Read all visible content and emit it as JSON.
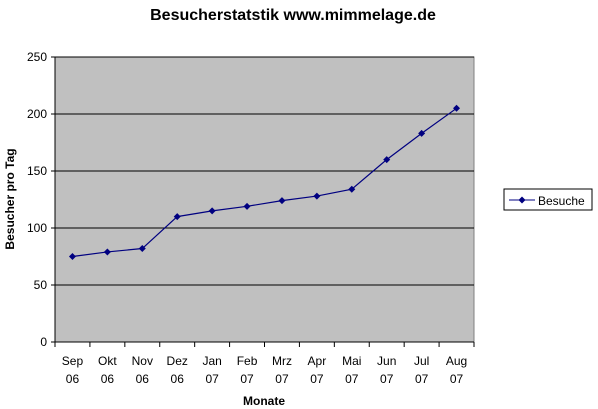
{
  "chart_data": {
    "type": "line",
    "title": "Besucherstatstik www.mimmelage.de",
    "xlabel": "Monate",
    "ylabel": "Besucher pro Tag",
    "categories": [
      [
        "Sep",
        "06"
      ],
      [
        "Okt",
        "06"
      ],
      [
        "Nov",
        "06"
      ],
      [
        "Dez",
        "06"
      ],
      [
        "Jan",
        "07"
      ],
      [
        "Feb",
        "07"
      ],
      [
        "Mrz",
        "07"
      ],
      [
        "Apr",
        "07"
      ],
      [
        "Mai",
        "07"
      ],
      [
        "Jun",
        "07"
      ],
      [
        "Jul",
        "07"
      ],
      [
        "Aug",
        "07"
      ]
    ],
    "series": [
      {
        "name": "Besuche",
        "values": [
          75,
          79,
          82,
          110,
          115,
          119,
          124,
          128,
          134,
          160,
          183,
          205
        ]
      }
    ],
    "ylim": [
      0,
      250
    ],
    "yticks": [
      0,
      50,
      100,
      150,
      200,
      250
    ],
    "grid": true,
    "legend": "right",
    "colors": {
      "plot_bg": "#c0c0c0",
      "line": "#000080",
      "grid": "#000000"
    }
  }
}
